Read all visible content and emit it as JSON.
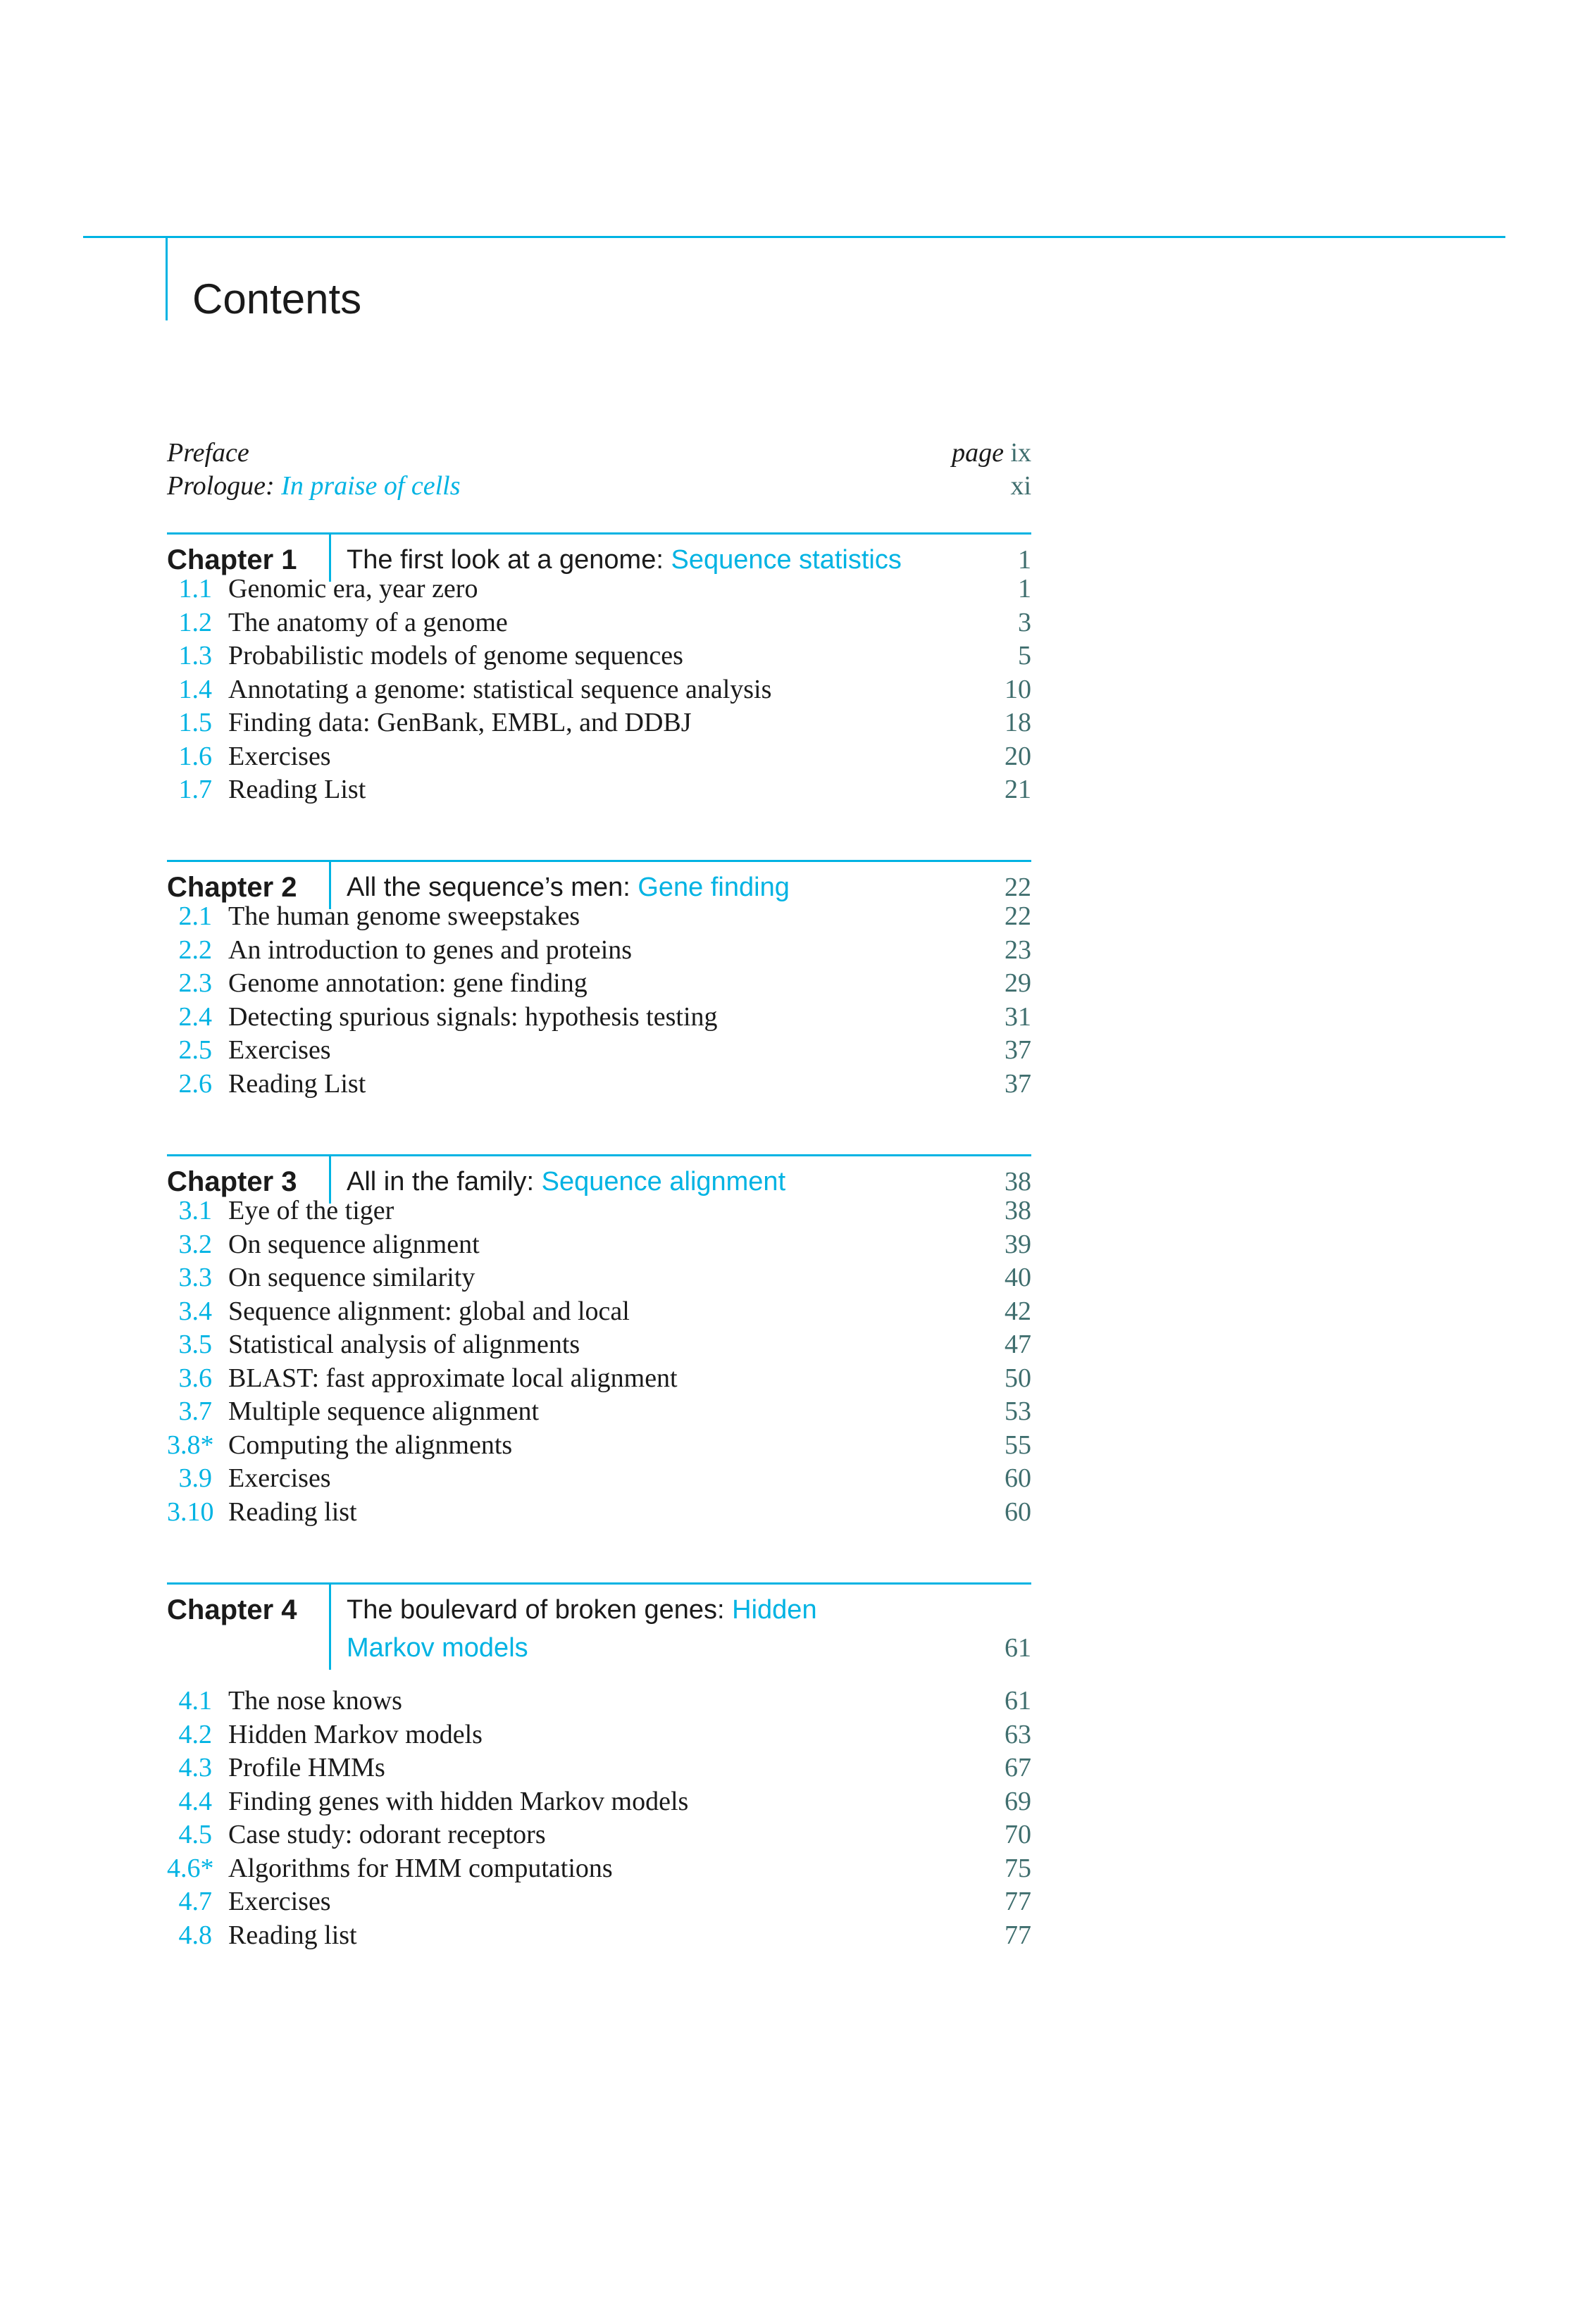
{
  "title": "Contents",
  "colors": {
    "accent": "#00b3e3",
    "page_number": "#3f6e6e"
  },
  "front_matter": [
    {
      "label": "Preface",
      "label_highlight": "",
      "page_prefix": "page",
      "page": "ix"
    },
    {
      "label": "Prologue:",
      "label_highlight": "In praise of cells",
      "page_prefix": "",
      "page": "xi"
    }
  ],
  "chapters": [
    {
      "label": "Chapter 1",
      "title": "The first look at a genome:",
      "highlight": "Sequence statistics",
      "page": "1",
      "sections": [
        {
          "num": "1.1",
          "title": "Genomic era, year zero",
          "page": "1"
        },
        {
          "num": "1.2",
          "title": "The anatomy of a genome",
          "page": "3"
        },
        {
          "num": "1.3",
          "title": "Probabilistic models of genome sequences",
          "page": "5"
        },
        {
          "num": "1.4",
          "title": "Annotating a genome: statistical sequence analysis",
          "page": "10"
        },
        {
          "num": "1.5",
          "title": "Finding data: GenBank, EMBL, and DDBJ",
          "page": "18"
        },
        {
          "num": "1.6",
          "title": "Exercises",
          "page": "20"
        },
        {
          "num": "1.7",
          "title": "Reading List",
          "page": "21"
        }
      ]
    },
    {
      "label": "Chapter 2",
      "title": "All the sequence’s men:",
      "highlight": "Gene finding",
      "page": "22",
      "sections": [
        {
          "num": "2.1",
          "title": "The human genome sweepstakes",
          "page": "22"
        },
        {
          "num": "2.2",
          "title": "An introduction to genes and proteins",
          "page": "23"
        },
        {
          "num": "2.3",
          "title": "Genome annotation: gene finding",
          "page": "29"
        },
        {
          "num": "2.4",
          "title": "Detecting spurious signals: hypothesis testing",
          "page": "31"
        },
        {
          "num": "2.5",
          "title": "Exercises",
          "page": "37"
        },
        {
          "num": "2.6",
          "title": "Reading List",
          "page": "37"
        }
      ]
    },
    {
      "label": "Chapter 3",
      "title": "All in the family:",
      "highlight": "Sequence alignment",
      "page": "38",
      "sections": [
        {
          "num": "3.1",
          "title": "Eye of the tiger",
          "page": "38"
        },
        {
          "num": "3.2",
          "title": "On sequence alignment",
          "page": "39"
        },
        {
          "num": "3.3",
          "title": "On sequence similarity",
          "page": "40"
        },
        {
          "num": "3.4",
          "title": "Sequence alignment: global and local",
          "page": "42"
        },
        {
          "num": "3.5",
          "title": "Statistical analysis of alignments",
          "page": "47"
        },
        {
          "num": "3.6",
          "title": "BLAST: fast approximate local alignment",
          "page": "50"
        },
        {
          "num": "3.7",
          "title": "Multiple sequence alignment",
          "page": "53"
        },
        {
          "num": "3.8*",
          "title": "Computing the alignments",
          "page": "55"
        },
        {
          "num": "3.9",
          "title": "Exercises",
          "page": "60"
        },
        {
          "num": "3.10",
          "title": "Reading list",
          "page": "60"
        }
      ]
    },
    {
      "label": "Chapter 4",
      "title": "The boulevard of broken genes:",
      "highlight": "Hidden Markov models",
      "page": "61",
      "sections": [
        {
          "num": "4.1",
          "title": "The nose knows",
          "page": "61"
        },
        {
          "num": "4.2",
          "title": "Hidden Markov models",
          "page": "63"
        },
        {
          "num": "4.3",
          "title": "Profile HMMs",
          "page": "67"
        },
        {
          "num": "4.4",
          "title": "Finding genes with hidden Markov models",
          "page": "69"
        },
        {
          "num": "4.5",
          "title": "Case study: odorant receptors",
          "page": "70"
        },
        {
          "num": "4.6*",
          "title": "Algorithms for HMM computations",
          "page": "75"
        },
        {
          "num": "4.7",
          "title": "Exercises",
          "page": "77"
        },
        {
          "num": "4.8",
          "title": "Reading list",
          "page": "77"
        }
      ]
    }
  ]
}
